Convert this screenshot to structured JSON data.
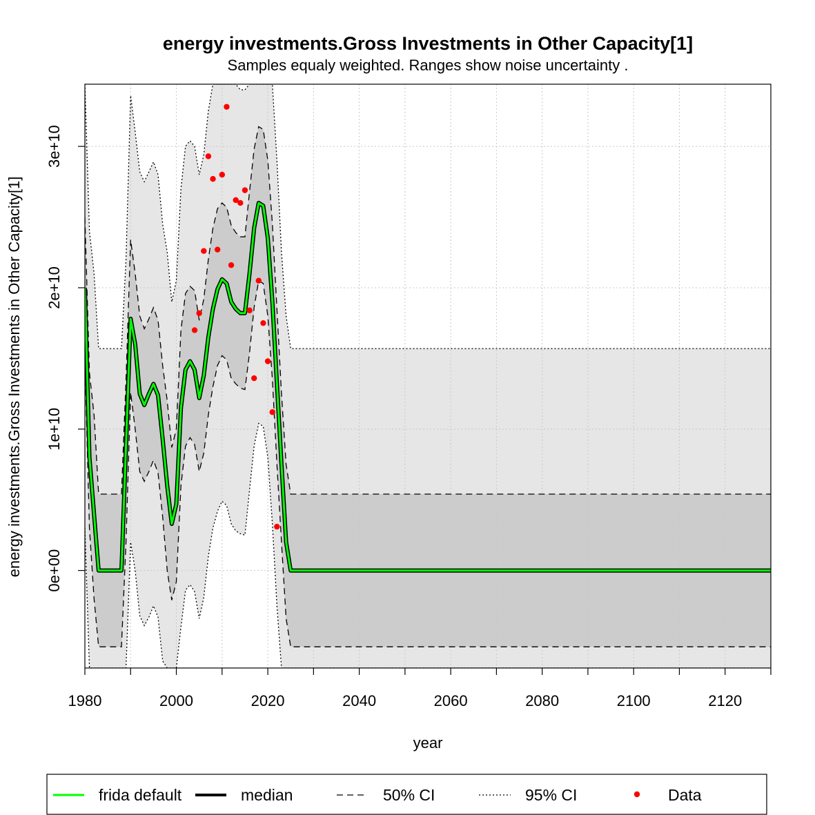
{
  "chart_data": {
    "type": "line",
    "title": "energy investments.Gross Investments in Other Capacity[1]",
    "subtitle": "Samples equaly weighted. Ranges show  noise uncertainty .",
    "xlabel": "year",
    "ylabel": "energy investments.Gross Investments in Other Capacity[1]",
    "xlim": [
      1980,
      2130
    ],
    "ylim": [
      -6900000000.0,
      34400000000.0
    ],
    "x_ticks": [
      1980,
      2000,
      2020,
      2040,
      2060,
      2080,
      2100,
      2120
    ],
    "x_tick_labels": [
      "1980",
      "2000",
      "2020",
      "2040",
      "2060",
      "2080",
      "2100",
      "2120"
    ],
    "y_ticks": [
      0,
      10000000000.0,
      20000000000.0,
      30000000000.0
    ],
    "y_tick_labels": [
      "0e+00",
      "1e+10",
      "2e+10",
      "3e+10"
    ],
    "grid": true,
    "legend_position": "bottom",
    "legend": [
      {
        "label": "frida default",
        "style": "green-line"
      },
      {
        "label": "median",
        "style": "black-line"
      },
      {
        "label": "50% CI",
        "style": "dashed"
      },
      {
        "label": "95% CI",
        "style": "dotted"
      },
      {
        "label": "Data",
        "style": "red-point"
      }
    ],
    "colors": {
      "frida": "#00ff00",
      "median": "#000000",
      "ci50_fill": "#cccccc",
      "ci95_fill": "#e6e6e6",
      "data": "#ff0000"
    },
    "series": [
      {
        "name": "frida default",
        "x": [
          1980,
          1981,
          1983,
          1988,
          1990,
          1991,
          1992,
          1993,
          1994,
          1995,
          1996,
          1997,
          1998,
          1999,
          2000,
          2001,
          2002,
          2003,
          2004,
          2005,
          2006,
          2007,
          2008,
          2009,
          2010,
          2011,
          2012,
          2013,
          2014,
          2015,
          2016,
          2017,
          2018,
          2019,
          2020,
          2021,
          2022,
          2023,
          2024,
          2025,
          2130
        ],
        "y": [
          20000000000.0,
          8000000000.0,
          0,
          0,
          17800000000.0,
          16000000000.0,
          12500000000.0,
          11700000000.0,
          12500000000.0,
          13200000000.0,
          12400000000.0,
          9300000000.0,
          6000000000.0,
          3300000000.0,
          4700000000.0,
          11500000000.0,
          14200000000.0,
          14800000000.0,
          14200000000.0,
          12200000000.0,
          13800000000.0,
          16500000000.0,
          18500000000.0,
          19900000000.0,
          20600000000.0,
          20300000000.0,
          19000000000.0,
          18500000000.0,
          18200000000.0,
          18200000000.0,
          21000000000.0,
          24200000000.0,
          26000000000.0,
          25800000000.0,
          23500000000.0,
          19000000000.0,
          13200000000.0,
          7500000000.0,
          2000000000.0,
          0,
          0
        ]
      },
      {
        "name": "median",
        "x": [
          1980,
          1981,
          1983,
          1988,
          1990,
          1991,
          1992,
          1993,
          1994,
          1995,
          1996,
          1997,
          1998,
          1999,
          2000,
          2001,
          2002,
          2003,
          2004,
          2005,
          2006,
          2007,
          2008,
          2009,
          2010,
          2011,
          2012,
          2013,
          2014,
          2015,
          2016,
          2017,
          2018,
          2019,
          2020,
          2021,
          2022,
          2023,
          2024,
          2025,
          2130
        ],
        "y": [
          20000000000.0,
          8000000000.0,
          0,
          0,
          17800000000.0,
          16000000000.0,
          12500000000.0,
          11700000000.0,
          12500000000.0,
          13200000000.0,
          12400000000.0,
          9300000000.0,
          6000000000.0,
          3300000000.0,
          4700000000.0,
          11500000000.0,
          14200000000.0,
          14800000000.0,
          14200000000.0,
          12200000000.0,
          13800000000.0,
          16500000000.0,
          18500000000.0,
          19900000000.0,
          20600000000.0,
          20300000000.0,
          19000000000.0,
          18500000000.0,
          18200000000.0,
          18200000000.0,
          21000000000.0,
          24200000000.0,
          26000000000.0,
          25800000000.0,
          23500000000.0,
          19000000000.0,
          13200000000.0,
          7500000000.0,
          2000000000.0,
          0,
          0
        ]
      }
    ],
    "ci50": {
      "x": [
        1980,
        1981,
        1982,
        1983,
        1988,
        1989,
        1990,
        1991,
        1992,
        1993,
        1994,
        1995,
        1996,
        1997,
        1998,
        1999,
        2000,
        2001,
        2002,
        2003,
        2004,
        2005,
        2006,
        2007,
        2008,
        2009,
        2010,
        2011,
        2012,
        2013,
        2014,
        2015,
        2016,
        2017,
        2018,
        2019,
        2020,
        2021,
        2022,
        2023,
        2024,
        2025,
        2130
      ],
      "upper": [
        25000000000.0,
        14000000000.0,
        11000000000.0,
        5400000000.0,
        5400000000.0,
        13500000000.0,
        23400000000.0,
        21000000000.0,
        18000000000.0,
        17100000000.0,
        17800000000.0,
        18600000000.0,
        17700000000.0,
        14500000000.0,
        12000000000.0,
        8700000000.0,
        10000000000.0,
        17000000000.0,
        19600000000.0,
        20100000000.0,
        19800000000.0,
        17700000000.0,
        19200000000.0,
        22000000000.0,
        24200000000.0,
        25600000000.0,
        26000000000.0,
        25700000000.0,
        24400000000.0,
        23900000000.0,
        23600000000.0,
        23600000000.0,
        26800000000.0,
        29800000000.0,
        31400000000.0,
        31200000000.0,
        29000000000.0,
        24500000000.0,
        18500000000.0,
        12500000000.0,
        7500000000.0,
        5400000000.0,
        5400000000.0
      ],
      "lower": [
        15000000000.0,
        3000000000.0,
        -2000000000.0,
        -5400000000.0,
        -5400000000.0,
        2000000000.0,
        12600000000.0,
        10000000000.0,
        7000000000.0,
        6300000000.0,
        7000000000.0,
        7800000000.0,
        6900000000.0,
        3800000000.0,
        0,
        -2100000000.0,
        -800000000.0,
        6000000000.0,
        8800000000.0,
        9400000000.0,
        8900000000.0,
        7000000000.0,
        8300000000.0,
        11000000000.0,
        13000000000.0,
        14500000000.0,
        15200000000.0,
        14900000000.0,
        13600000000.0,
        13200000000.0,
        12900000000.0,
        12800000000.0,
        15400000000.0,
        18600000000.0,
        20500000000.0,
        20300000000.0,
        18000000000.0,
        13500000000.0,
        7500000000.0,
        2000000000.0,
        -3400000000.0,
        -5400000000.0,
        -5400000000.0
      ]
    },
    "ci95": {
      "x": [
        1980,
        1981,
        1982,
        1983,
        1988,
        1989,
        1990,
        1991,
        1992,
        1993,
        1994,
        1995,
        1996,
        1997,
        1998,
        1999,
        2000,
        2001,
        2002,
        2003,
        2004,
        2005,
        2006,
        2007,
        2008,
        2009,
        2010,
        2011,
        2012,
        2013,
        2014,
        2015,
        2016,
        2017,
        2018,
        2019,
        2020,
        2021,
        2022,
        2023,
        2024,
        2025,
        2130
      ],
      "upper": [
        34400000000.0,
        24000000000.0,
        21000000000.0,
        15700000000.0,
        15700000000.0,
        22000000000.0,
        33600000000.0,
        31000000000.0,
        28200000000.0,
        27500000000.0,
        28200000000.0,
        28900000000.0,
        28000000000.0,
        24500000000.0,
        22500000000.0,
        19000000000.0,
        20500000000.0,
        27000000000.0,
        30000000000.0,
        30400000000.0,
        30000000000.0,
        28000000000.0,
        29400000000.0,
        32500000000.0,
        34400000000.0,
        34400000000.0,
        34400000000.0,
        34400000000.0,
        34400000000.0,
        34400000000.0,
        34000000000.0,
        34000000000.0,
        34400000000.0,
        34400000000.0,
        34400000000.0,
        34400000000.0,
        34400000000.0,
        34400000000.0,
        29000000000.0,
        22500000000.0,
        18000000000.0,
        15700000000.0,
        15700000000.0
      ],
      "lower": [
        3000000000.0,
        -6900000000.0,
        -6900000000.0,
        -6900000000.0,
        -6900000000.0,
        -6900000000.0,
        2000000000.0,
        0,
        -3200000000.0,
        -3900000000.0,
        -3300000000.0,
        -2500000000.0,
        -3300000000.0,
        -6400000000.0,
        -6900000000.0,
        -6900000000.0,
        -6900000000.0,
        -4000000000.0,
        -1400000000.0,
        -1000000000.0,
        -1500000000.0,
        -3400000000.0,
        -1900000000.0,
        1000000000.0,
        3000000000.0,
        4200000000.0,
        4900000000.0,
        4600000000.0,
        3300000000.0,
        2800000000.0,
        2600000000.0,
        2500000000.0,
        5700000000.0,
        8800000000.0,
        10400000000.0,
        10200000000.0,
        8000000000.0,
        3300000000.0,
        -2500000000.0,
        -6900000000.0,
        -6900000000.0,
        -6900000000.0,
        -6900000000.0
      ]
    },
    "data_points": {
      "x": [
        2004,
        2005,
        2006,
        2007,
        2008,
        2009,
        2010,
        2011,
        2012,
        2013,
        2014,
        2015,
        2016,
        2017,
        2018,
        2019,
        2020,
        2021,
        2022
      ],
      "y": [
        17000000000.0,
        18200000000.0,
        22600000000.0,
        29300000000.0,
        27700000000.0,
        22700000000.0,
        28000000000.0,
        32800000000.0,
        21600000000.0,
        26200000000.0,
        26000000000.0,
        26900000000.0,
        18400000000.0,
        13600000000.0,
        20500000000.0,
        17500000000.0,
        14800000000.0,
        11200000000.0,
        3100000000.0
      ]
    }
  }
}
